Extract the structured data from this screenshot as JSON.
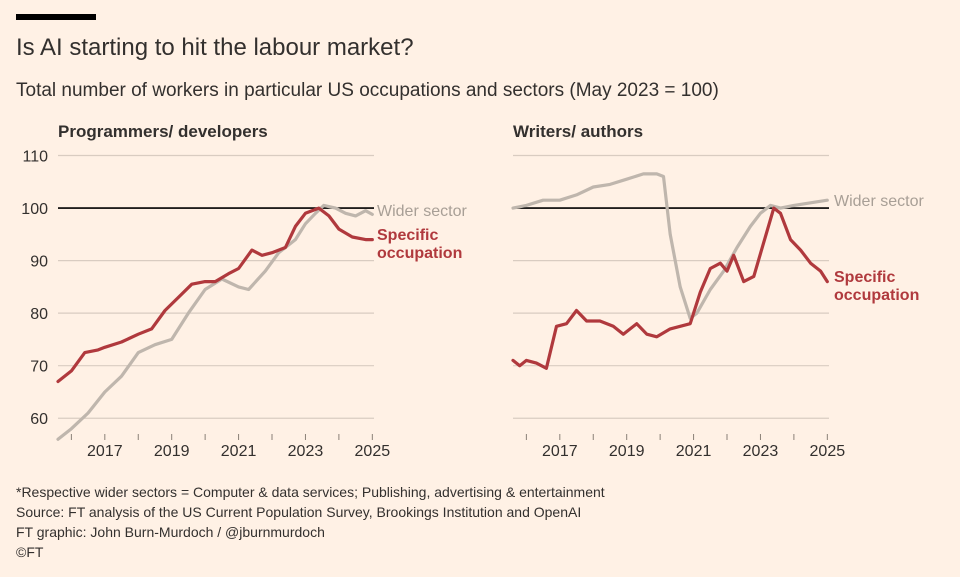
{
  "header": {
    "title": "Is AI starting to hit the labour market?",
    "subtitle": "Total number of workers in particular US occupations and sectors (May 2023 = 100)"
  },
  "colors": {
    "specific": "#B0393D",
    "wider": "#BFB6AD",
    "grid": "#D9CCC1",
    "baseline": "#000000",
    "text": "#33302E"
  },
  "chart_data": [
    {
      "type": "line",
      "title": "Programmers/ developers",
      "ylim": [
        57,
        112
      ],
      "xlim": [
        2015.6,
        2025.05
      ],
      "yticks": [
        60,
        70,
        80,
        90,
        100,
        110
      ],
      "ytick_labels": [
        "60",
        "70",
        "80",
        "90",
        "100",
        "110"
      ],
      "xticks": [
        "2017",
        "2019",
        "2021",
        "2023",
        "2025"
      ],
      "reference_line": 100,
      "series": [
        {
          "name": "Wider sector",
          "label": "Wider sector",
          "points": [
            [
              2015.6,
              56
            ],
            [
              2016.0,
              58
            ],
            [
              2016.5,
              61
            ],
            [
              2017.0,
              65
            ],
            [
              2017.5,
              68
            ],
            [
              2018.0,
              72.5
            ],
            [
              2018.5,
              74
            ],
            [
              2019.0,
              75
            ],
            [
              2019.5,
              80
            ],
            [
              2020.0,
              84.5
            ],
            [
              2020.5,
              86.5
            ],
            [
              2021.0,
              85
            ],
            [
              2021.3,
              84.5
            ],
            [
              2021.8,
              88
            ],
            [
              2022.2,
              91.5
            ],
            [
              2022.7,
              94
            ],
            [
              2023.0,
              97
            ],
            [
              2023.3,
              99
            ],
            [
              2023.55,
              100.5
            ],
            [
              2023.9,
              100
            ],
            [
              2024.2,
              99
            ],
            [
              2024.5,
              98.5
            ],
            [
              2024.8,
              99.5
            ],
            [
              2025.0,
              98.8
            ]
          ]
        },
        {
          "name": "Specific occupation",
          "label": "Specific occupation",
          "points": [
            [
              2015.6,
              67
            ],
            [
              2016.0,
              69
            ],
            [
              2016.4,
              72.5
            ],
            [
              2016.8,
              73
            ],
            [
              2017.0,
              73.5
            ],
            [
              2017.5,
              74.5
            ],
            [
              2018.0,
              76
            ],
            [
              2018.4,
              77
            ],
            [
              2018.8,
              80.5
            ],
            [
              2019.2,
              83
            ],
            [
              2019.6,
              85.5
            ],
            [
              2020.0,
              86
            ],
            [
              2020.3,
              86
            ],
            [
              2020.7,
              87.5
            ],
            [
              2021.0,
              88.5
            ],
            [
              2021.4,
              92
            ],
            [
              2021.7,
              91
            ],
            [
              2022.0,
              91.5
            ],
            [
              2022.4,
              92.5
            ],
            [
              2022.7,
              96.5
            ],
            [
              2023.0,
              99
            ],
            [
              2023.4,
              100
            ],
            [
              2023.7,
              98.5
            ],
            [
              2024.0,
              96
            ],
            [
              2024.4,
              94.5
            ],
            [
              2024.8,
              94
            ],
            [
              2025.0,
              94
            ]
          ]
        }
      ]
    },
    {
      "type": "line",
      "title": "Writers/ authors",
      "ylim": [
        57,
        112
      ],
      "xlim": [
        2015.6,
        2025.05
      ],
      "yticks": [
        60,
        70,
        80,
        90,
        100,
        110
      ],
      "ytick_labels": [],
      "xticks": [
        "2017",
        "2019",
        "2021",
        "2023",
        "2025"
      ],
      "reference_line": 100,
      "series": [
        {
          "name": "Wider sector",
          "label": "Wider sector",
          "points": [
            [
              2015.6,
              100
            ],
            [
              2016.0,
              100.5
            ],
            [
              2016.5,
              101.5
            ],
            [
              2017.0,
              101.5
            ],
            [
              2017.5,
              102.5
            ],
            [
              2018.0,
              104
            ],
            [
              2018.5,
              104.5
            ],
            [
              2019.0,
              105.5
            ],
            [
              2019.5,
              106.5
            ],
            [
              2019.9,
              106.5
            ],
            [
              2020.1,
              106
            ],
            [
              2020.3,
              95
            ],
            [
              2020.6,
              85
            ],
            [
              2020.9,
              79
            ],
            [
              2021.1,
              80
            ],
            [
              2021.5,
              84.5
            ],
            [
              2021.9,
              88
            ],
            [
              2022.3,
              92.5
            ],
            [
              2022.7,
              96.5
            ],
            [
              2023.0,
              99
            ],
            [
              2023.3,
              100.5
            ],
            [
              2023.6,
              100
            ],
            [
              2024.0,
              100.5
            ],
            [
              2024.5,
              101
            ],
            [
              2025.0,
              101.5
            ]
          ]
        },
        {
          "name": "Specific occupation",
          "label": "Specific occupation",
          "points": [
            [
              2015.6,
              71
            ],
            [
              2015.8,
              70
            ],
            [
              2016.0,
              71
            ],
            [
              2016.3,
              70.5
            ],
            [
              2016.6,
              69.5
            ],
            [
              2016.9,
              77.5
            ],
            [
              2017.2,
              78
            ],
            [
              2017.5,
              80.5
            ],
            [
              2017.8,
              78.5
            ],
            [
              2018.2,
              78.5
            ],
            [
              2018.6,
              77.5
            ],
            [
              2018.9,
              76
            ],
            [
              2019.3,
              78
            ],
            [
              2019.6,
              76
            ],
            [
              2019.9,
              75.5
            ],
            [
              2020.3,
              77
            ],
            [
              2020.6,
              77.5
            ],
            [
              2020.9,
              78
            ],
            [
              2021.2,
              84
            ],
            [
              2021.5,
              88.5
            ],
            [
              2021.8,
              89.5
            ],
            [
              2022.0,
              88
            ],
            [
              2022.2,
              91
            ],
            [
              2022.5,
              86
            ],
            [
              2022.8,
              87
            ],
            [
              2023.1,
              93.5
            ],
            [
              2023.4,
              100
            ],
            [
              2023.6,
              99
            ],
            [
              2023.9,
              94
            ],
            [
              2024.2,
              92
            ],
            [
              2024.5,
              89.5
            ],
            [
              2024.8,
              88
            ],
            [
              2025.0,
              86
            ]
          ]
        }
      ]
    }
  ],
  "footer": {
    "note": "*Respective wider sectors = Computer & data services; Publishing, advertising & entertainment",
    "source": "Source: FT analysis of the US Current Population Survey, Brookings Institution and OpenAI",
    "graphic": "FT graphic: John Burn-Murdoch / @jburnmurdoch",
    "copyright": "©FT"
  }
}
